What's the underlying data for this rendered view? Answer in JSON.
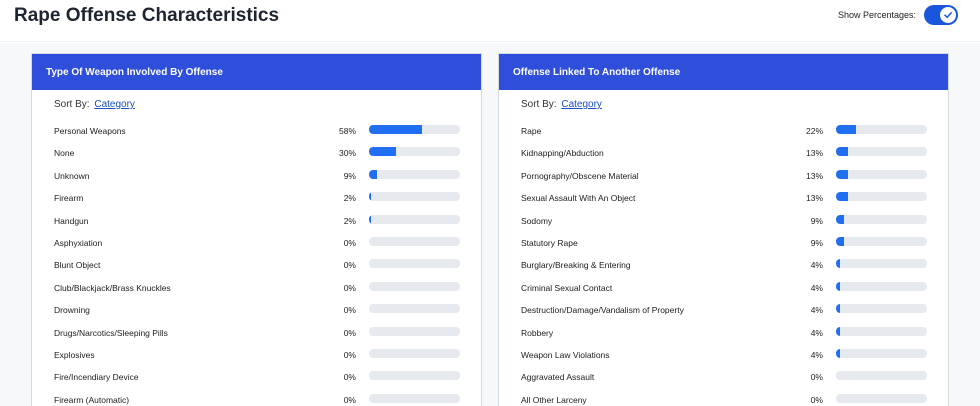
{
  "header": {
    "title": "Rape Offense Characteristics",
    "toggle_label": "Show Percentages:",
    "toggle_on": true
  },
  "colors": {
    "panel_header": "#2f4fdb",
    "bar_fill": "#1f6ff0",
    "bar_track": "#e6e9ee",
    "toggle": "#1a56db"
  },
  "panels": [
    {
      "title": "Type Of Weapon Involved By Offense",
      "sort_prefix": "Sort By:",
      "sort_value": "Category",
      "rows": [
        {
          "label": "Personal Weapons",
          "pct": "58%",
          "value": 58
        },
        {
          "label": "None",
          "pct": "30%",
          "value": 30
        },
        {
          "label": "Unknown",
          "pct": "9%",
          "value": 9
        },
        {
          "label": "Firearm",
          "pct": "2%",
          "value": 2
        },
        {
          "label": "Handgun",
          "pct": "2%",
          "value": 2
        },
        {
          "label": "Asphyxiation",
          "pct": "0%",
          "value": 0
        },
        {
          "label": "Blunt Object",
          "pct": "0%",
          "value": 0
        },
        {
          "label": "Club/Blackjack/Brass Knuckles",
          "pct": "0%",
          "value": 0
        },
        {
          "label": "Drowning",
          "pct": "0%",
          "value": 0
        },
        {
          "label": "Drugs/Narcotics/Sleeping Pills",
          "pct": "0%",
          "value": 0
        },
        {
          "label": "Explosives",
          "pct": "0%",
          "value": 0
        },
        {
          "label": "Fire/Incendiary Device",
          "pct": "0%",
          "value": 0
        },
        {
          "label": "Firearm (Automatic)",
          "pct": "0%",
          "value": 0
        }
      ]
    },
    {
      "title": "Offense Linked To Another Offense",
      "sort_prefix": "Sort By:",
      "sort_value": "Category",
      "rows": [
        {
          "label": "Rape",
          "pct": "22%",
          "value": 22
        },
        {
          "label": "Kidnapping/Abduction",
          "pct": "13%",
          "value": 13
        },
        {
          "label": "Pornography/Obscene Material",
          "pct": "13%",
          "value": 13
        },
        {
          "label": "Sexual Assault With An Object",
          "pct": "13%",
          "value": 13
        },
        {
          "label": "Sodomy",
          "pct": "9%",
          "value": 9
        },
        {
          "label": "Statutory Rape",
          "pct": "9%",
          "value": 9
        },
        {
          "label": "Burglary/Breaking & Entering",
          "pct": "4%",
          "value": 4
        },
        {
          "label": "Criminal Sexual Contact",
          "pct": "4%",
          "value": 4
        },
        {
          "label": "Destruction/Damage/Vandalism of Property",
          "pct": "4%",
          "value": 4
        },
        {
          "label": "Robbery",
          "pct": "4%",
          "value": 4
        },
        {
          "label": "Weapon Law Violations",
          "pct": "4%",
          "value": 4
        },
        {
          "label": "Aggravated Assault",
          "pct": "0%",
          "value": 0
        },
        {
          "label": "All Other Larceny",
          "pct": "0%",
          "value": 0
        }
      ]
    }
  ]
}
